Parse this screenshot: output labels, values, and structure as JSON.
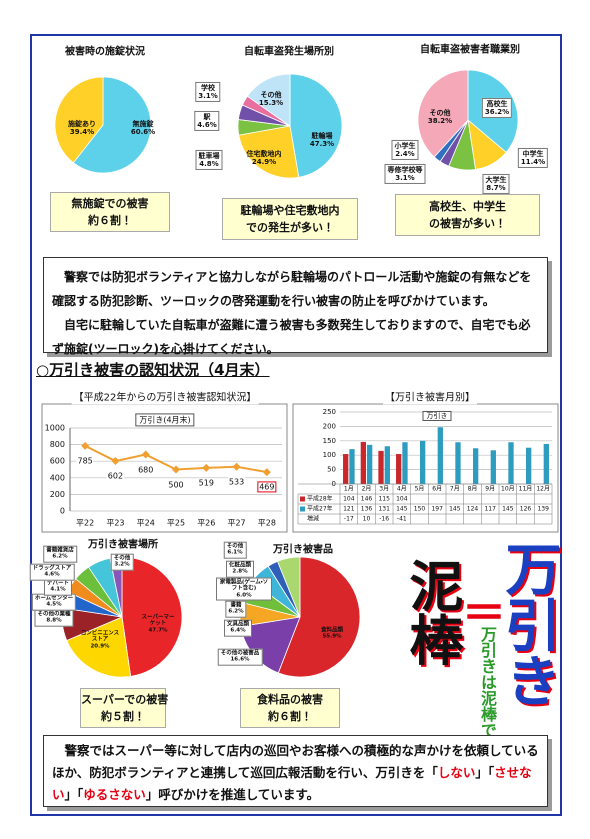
{
  "chart_data": [
    {
      "type": "pie",
      "title": "被害時の施錠状況",
      "categories": [
        "無施錠",
        "施錠あり"
      ],
      "values": [
        60.6,
        39.4
      ],
      "value_labels": [
        "60.6%",
        "39.4%"
      ],
      "colors": [
        "#5ed1ea",
        "#ffd028"
      ],
      "annotations": [
        "無施錠での被害",
        "約６割！"
      ]
    },
    {
      "type": "pie",
      "title": "自転車盗発生場所別",
      "categories": [
        "駐輪場",
        "住宅敷地内",
        "駐車場",
        "駅",
        "学校",
        "その他"
      ],
      "values": [
        47.3,
        24.9,
        4.8,
        4.6,
        3.1,
        15.3
      ],
      "value_labels": [
        "47.3%",
        "24.9%",
        "4.8%",
        "4.6%",
        "3.1%",
        "15.3%"
      ],
      "colors": [
        "#5ed1ea",
        "#ffd028",
        "#7cc242",
        "#7050a8",
        "#e86fa0",
        "#bfe3f7"
      ],
      "annotations": [
        "駐輪場や住宅敷地内",
        "での発生が多い！"
      ]
    },
    {
      "type": "pie",
      "title": "自転車盗被害者職業別",
      "categories": [
        "高校生",
        "中学生",
        "大学生",
        "専修学校等",
        "小学生",
        "その他"
      ],
      "values": [
        36.2,
        11.4,
        8.7,
        3.1,
        2.4,
        38.2
      ],
      "value_labels": [
        "36.2%",
        "11.4%",
        "8.7%",
        "3.1%",
        "2.4%",
        "38.2%"
      ],
      "colors": [
        "#5ed1ea",
        "#ffd028",
        "#7cc242",
        "#7050a8",
        "#3070c0",
        "#f5a8b8"
      ],
      "annotations": [
        "高校生、中学生",
        "の被害が多い！"
      ]
    },
    {
      "type": "line",
      "title": "【平成22年からの万引き被害認知状況】",
      "categories": [
        "平22",
        "平23",
        "平24",
        "平25",
        "平26",
        "平27",
        "平28"
      ],
      "series": [
        {
          "name": "万引き(4月末)",
          "color": "#f0a030",
          "values": [
            785,
            602,
            680,
            500,
            519,
            533,
            469
          ]
        }
      ],
      "ylim": [
        0,
        1000
      ],
      "yticks": [
        0,
        200,
        400,
        600,
        800,
        1000
      ],
      "grid": true
    },
    {
      "type": "bar",
      "title": "【万引き被害月別】",
      "legend_title": "万引き",
      "categories": [
        "1月",
        "2月",
        "3月",
        "4月",
        "5月",
        "6月",
        "7月",
        "8月",
        "9月",
        "10月",
        "11月",
        "12月"
      ],
      "series": [
        {
          "name": "平成28年",
          "color": "#c8282c",
          "values": [
            104,
            146,
            115,
            104,
            null,
            null,
            null,
            null,
            null,
            null,
            null,
            null
          ]
        },
        {
          "name": "平成27年",
          "color": "#2e9cbf",
          "values": [
            121,
            136,
            131,
            145,
            150,
            197,
            145,
            124,
            117,
            145,
            126,
            139
          ]
        }
      ],
      "difference": {
        "name": "増減",
        "values": [
          -17,
          10,
          -16,
          -41,
          null,
          null,
          null,
          null,
          null,
          null,
          null,
          null
        ]
      },
      "ylim": [
        0,
        250
      ],
      "yticks": [
        0,
        50,
        100,
        150,
        200,
        250
      ],
      "grid": true
    },
    {
      "type": "pie",
      "title": "万引き被害場所",
      "categories": [
        "スーパーマーケット",
        "コンビニエンスストア",
        "その他の業種",
        "ホームセンター",
        "デパート",
        "ドラッグストア",
        "書籍雑貨店",
        "その他"
      ],
      "values": [
        47.7,
        20.9,
        8.8,
        4.5,
        4.1,
        4.6,
        6.2,
        3.2
      ],
      "value_labels": [
        "47.7%",
        "20.9%",
        "8.8%",
        "4.5%",
        "4.1%",
        "4.6%",
        "6.2%",
        "3.2%"
      ],
      "colors": [
        "#e8262a",
        "#ffd700",
        "#9b2226",
        "#2266cc",
        "#f08c1e",
        "#6bbf3a",
        "#44c5d9",
        "#8a55b8"
      ],
      "annotations": [
        "スーパーでの被害",
        "約５割！"
      ]
    },
    {
      "type": "pie",
      "title": "万引き被害品",
      "categories": [
        "食料品類",
        "その他の被害品",
        "文具品類",
        "書籍",
        "家電製品(ゲーム・ソフト含む)",
        "化粧品類",
        "その他"
      ],
      "values": [
        55.9,
        16.6,
        6.4,
        6.2,
        6.0,
        2.8,
        6.1
      ],
      "value_labels": [
        "55.9%",
        "16.6%",
        "6.4%",
        "6.2%",
        "6.0%",
        "2.8%",
        "6.1%"
      ],
      "colors": [
        "#d9262a",
        "#7a3fa8",
        "#f5a623",
        "#6fbf3a",
        "#3fb6d9",
        "#2f5fb8",
        "#a9d86e"
      ],
      "annotations": [
        "食料品の被害",
        "約６割！"
      ]
    }
  ],
  "notice_1": {
    "paragraphs": [
      "警察では防犯ボランティアと協力しながら駐輪場のパトロール活動や施錠の有無などを確認する防犯診断、ツーロックの啓発運動を行い被害の防止を呼びかけています。",
      "自宅に駐輪していた自転車が盗難に遭う被害も多数発生しておりますので、自宅でも必ず施錠(ツーロック)を心掛けてください。"
    ]
  },
  "section_heading": "○万引き被害の認知状況（4月末）",
  "poster": {
    "word_1": "泥棒",
    "equals": "＝",
    "word_2": "万引き",
    "slogan": "万引きは泥棒です。"
  },
  "notice_2": {
    "segments": [
      {
        "text": "警察ではスーパー等に対して店内の巡回やお客様への積極的な声かけを依頼しているほか、防犯ボランティアと連携して巡回広報活動を行い、万引きを「"
      },
      {
        "text": "しない",
        "color": "#e60012"
      },
      {
        "text": "」「"
      },
      {
        "text": "させない",
        "color": "#e60012"
      },
      {
        "text": "」「"
      },
      {
        "text": "ゆるさない",
        "color": "#e60012"
      },
      {
        "text": "」呼びかけを推進しています。"
      }
    ]
  }
}
